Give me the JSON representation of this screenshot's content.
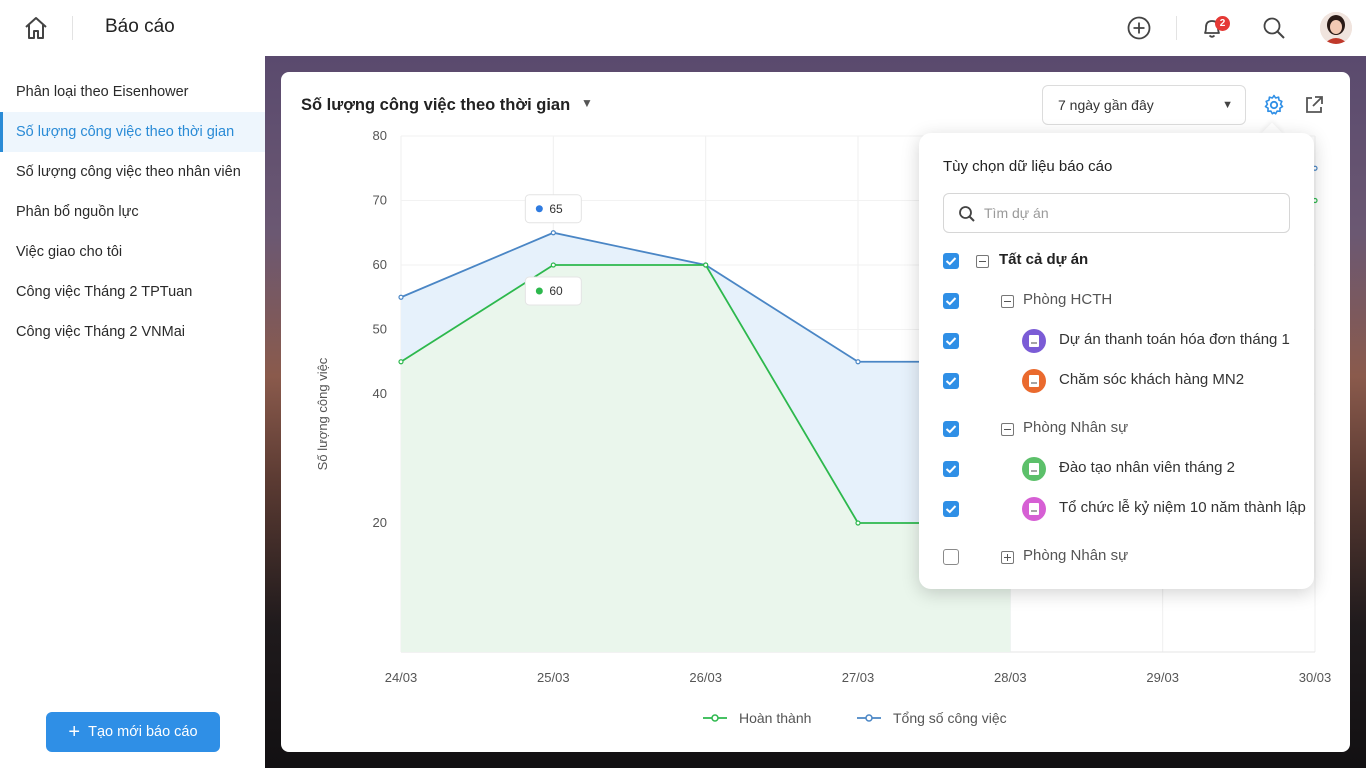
{
  "header": {
    "title": "Báo cáo",
    "notification_count": "2"
  },
  "sidebar": {
    "items": [
      {
        "label": "Phân loại theo Eisenhower"
      },
      {
        "label": "Số lượng công việc theo thời gian"
      },
      {
        "label": "Số lượng công việc theo nhân viên"
      },
      {
        "label": "Phân bổ nguồn lực"
      },
      {
        "label": "Việc giao cho tôi"
      },
      {
        "label": "Công việc Tháng 2 TPTuan"
      },
      {
        "label": "Công việc Tháng 2 VNMai"
      }
    ],
    "active_index": 1,
    "new_report_label": "Tạo mới báo cáo"
  },
  "report": {
    "title": "Số lượng công việc theo thời gian",
    "range_selected": "7 ngày gần đây"
  },
  "chart_data": {
    "type": "area",
    "ylabel": "Số lượng công việc",
    "ylim": [
      0,
      80
    ],
    "y_ticks": [
      80,
      70,
      60,
      50,
      40,
      20
    ],
    "categories": [
      "24/03",
      "25/03",
      "26/03",
      "27/03",
      "28/03",
      "29/03",
      "30/03"
    ],
    "series": [
      {
        "name": "Hoàn thành",
        "color": "#2db84d",
        "values": [
          45,
          60,
          60,
          20,
          20,
          null,
          70
        ]
      },
      {
        "name": "Tổng số công việc",
        "color": "#4a86c5",
        "values": [
          55,
          65,
          60,
          45,
          45,
          null,
          75
        ]
      }
    ],
    "tooltips": [
      {
        "series": "Tổng số công việc",
        "x": "25/03",
        "value": "65"
      },
      {
        "series": "Hoàn thành",
        "x": "25/03",
        "value": "60"
      }
    ],
    "legend": "bottom",
    "grid": true
  },
  "filter_panel": {
    "title": "Tùy chọn dữ liệu báo cáo",
    "search_placeholder": "Tìm dự án",
    "all_label": "Tất cả dự án",
    "groups": [
      {
        "label": "Phòng HCTH",
        "checked": true,
        "projects": [
          {
            "label": "Dự án thanh toán hóa đơn tháng 1",
            "color": "#7b5cd6",
            "checked": true
          },
          {
            "label": "Chăm sóc khách hàng MN2",
            "color": "#ea6a2e",
            "checked": true
          }
        ]
      },
      {
        "label": "Phòng Nhân sự",
        "checked": true,
        "projects": [
          {
            "label": "Đào tạo nhân viên tháng 2",
            "color": "#5cc06a",
            "checked": true
          },
          {
            "label": "Tổ chức lễ kỷ niệm 10 năm thành lập",
            "color": "#d65fd4",
            "checked": true
          }
        ]
      },
      {
        "label": "Phòng Nhân sự",
        "checked": false,
        "projects": []
      }
    ]
  }
}
